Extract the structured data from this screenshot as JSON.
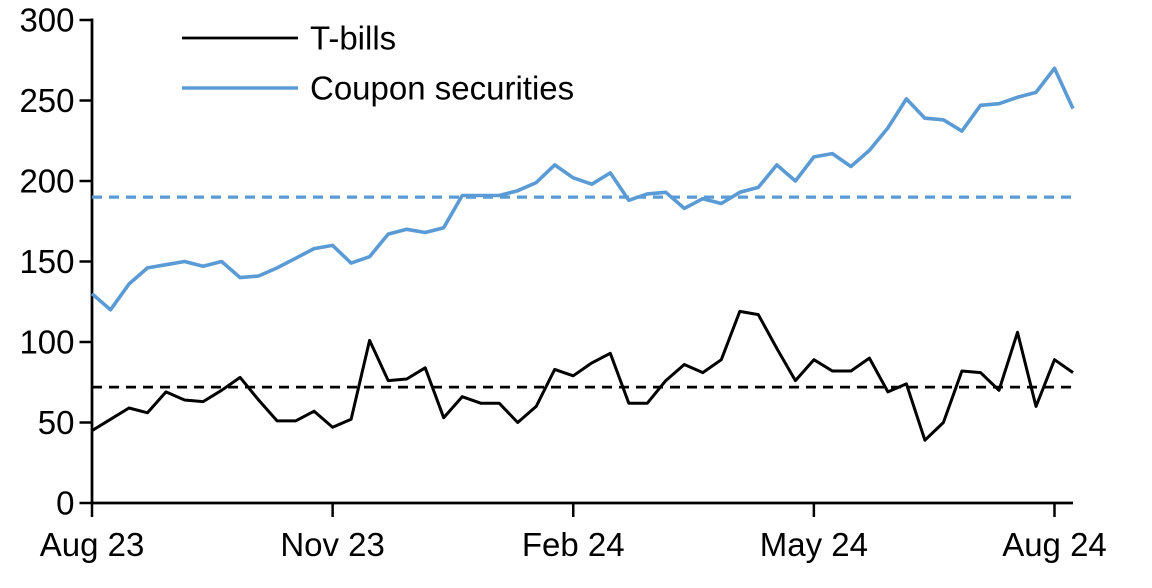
{
  "chart_data": {
    "type": "line",
    "title": "",
    "x_axis": {
      "tick_labels": [
        "Aug 23",
        "Nov 23",
        "Feb 24",
        "May 24",
        "Aug 24"
      ],
      "tick_weeks": [
        0,
        13,
        26,
        39,
        52
      ],
      "frequency": "weekly"
    },
    "y_axis": {
      "ticks": [
        0,
        50,
        100,
        150,
        200,
        250,
        300
      ],
      "range": [
        0,
        300
      ],
      "label": ""
    },
    "grid": false,
    "legend": {
      "position": "top-left-inside",
      "entries": [
        "T-bills",
        "Coupon securities"
      ]
    },
    "series": [
      {
        "name": "T-bills",
        "color": "#000000",
        "style": "solid",
        "dashed_reference_value": 72,
        "values": [
          45,
          52,
          59,
          56,
          69,
          64,
          63,
          70,
          78,
          64,
          51,
          51,
          57,
          47,
          52,
          101,
          76,
          77,
          84,
          53,
          66,
          62,
          62,
          50,
          60,
          83,
          79,
          87,
          93,
          62,
          62,
          76,
          86,
          81,
          89,
          119,
          117,
          96,
          76,
          89,
          82,
          82,
          90,
          69,
          74,
          39,
          50,
          82,
          81,
          70,
          106,
          60,
          89,
          81
        ]
      },
      {
        "name": "Coupon securities",
        "color": "#5B9BD5",
        "style": "solid",
        "dashed_reference_value": 190,
        "values": [
          130,
          120,
          136,
          146,
          148,
          150,
          147,
          150,
          140,
          141,
          146,
          152,
          158,
          160,
          149,
          153,
          167,
          170,
          168,
          171,
          191,
          191,
          191,
          194,
          199,
          210,
          202,
          198,
          205,
          188,
          192,
          193,
          183,
          189,
          186,
          193,
          196,
          210,
          200,
          215,
          217,
          209,
          219,
          233,
          251,
          239,
          238,
          231,
          247,
          248,
          252,
          255,
          270,
          245
        ]
      }
    ],
    "colors": {
      "axis": "#000000",
      "background": "#ffffff",
      "tbills": "#000000",
      "coupon": "#5B9BD5"
    }
  }
}
